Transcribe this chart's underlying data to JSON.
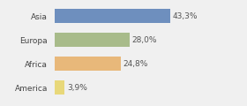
{
  "categories": [
    "Asia",
    "Europa",
    "Africa",
    "America"
  ],
  "values": [
    43.3,
    28.0,
    24.8,
    3.9
  ],
  "labels": [
    "43,3%",
    "28,0%",
    "24,8%",
    "3,9%"
  ],
  "bar_colors": [
    "#6e8fbe",
    "#a8bb8a",
    "#e8b87a",
    "#e8d87a"
  ],
  "background_color": "#f0f0f0",
  "xlim": [
    0,
    70
  ],
  "label_fontsize": 6.5,
  "tick_fontsize": 6.5
}
